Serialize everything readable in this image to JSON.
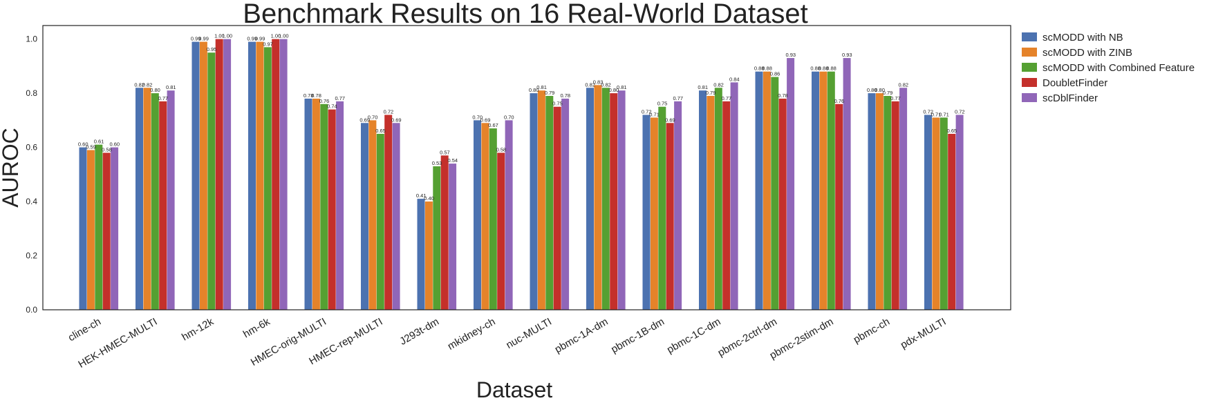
{
  "chart_data": {
    "type": "bar",
    "title": "Benchmark Results on 16 Real-World Dataset",
    "xlabel": "Dataset",
    "ylabel": "AUROC",
    "ylim": [
      0,
      1.05
    ],
    "yticks": [
      "0.0",
      "0.2",
      "0.4",
      "0.6",
      "0.8",
      "1.0"
    ],
    "grid": false,
    "legend_position": "outside-right",
    "categories": [
      "cline-ch",
      "HEK-HMEC-MULTI",
      "hm-12k",
      "hm-6k",
      "HMEC-orig-MULTI",
      "HMEC-rep-MULTI",
      "J293t-dm",
      "mkidney-ch",
      "nuc-MULTI",
      "pbmc-1A-dm",
      "pbmc-1B-dm",
      "pbmc-1C-dm",
      "pbmc-2ctrl-dm",
      "pbmc-2stim-dm",
      "pbmc-ch",
      "pdx-MULTI"
    ],
    "series": [
      {
        "name": "scMODD with NB",
        "color": "#4c72b0",
        "values": [
          0.6,
          0.82,
          0.99,
          0.99,
          0.78,
          0.69,
          0.41,
          0.7,
          0.8,
          0.82,
          0.72,
          0.81,
          0.88,
          0.88,
          0.8,
          0.72
        ]
      },
      {
        "name": "scMODD with ZINB",
        "color": "#e5832a",
        "values": [
          0.59,
          0.82,
          0.99,
          0.99,
          0.78,
          0.7,
          0.4,
          0.69,
          0.81,
          0.83,
          0.71,
          0.79,
          0.88,
          0.88,
          0.8,
          0.71
        ]
      },
      {
        "name": "scMODD with Combined Feature",
        "color": "#55a032",
        "values": [
          0.61,
          0.8,
          0.95,
          0.97,
          0.76,
          0.65,
          0.53,
          0.67,
          0.79,
          0.82,
          0.75,
          0.82,
          0.86,
          0.88,
          0.79,
          0.71
        ]
      },
      {
        "name": "DoubletFinder",
        "color": "#c4302b",
        "values": [
          0.58,
          0.77,
          1.0,
          1.0,
          0.74,
          0.72,
          0.57,
          0.58,
          0.75,
          0.8,
          0.69,
          0.77,
          0.78,
          0.76,
          0.77,
          0.65
        ]
      },
      {
        "name": "scDblFinder",
        "color": "#9066b8",
        "values": [
          0.6,
          0.81,
          1.0,
          1.0,
          0.77,
          0.69,
          0.54,
          0.7,
          0.78,
          0.81,
          0.77,
          0.84,
          0.93,
          0.93,
          0.82,
          0.72
        ]
      }
    ]
  }
}
